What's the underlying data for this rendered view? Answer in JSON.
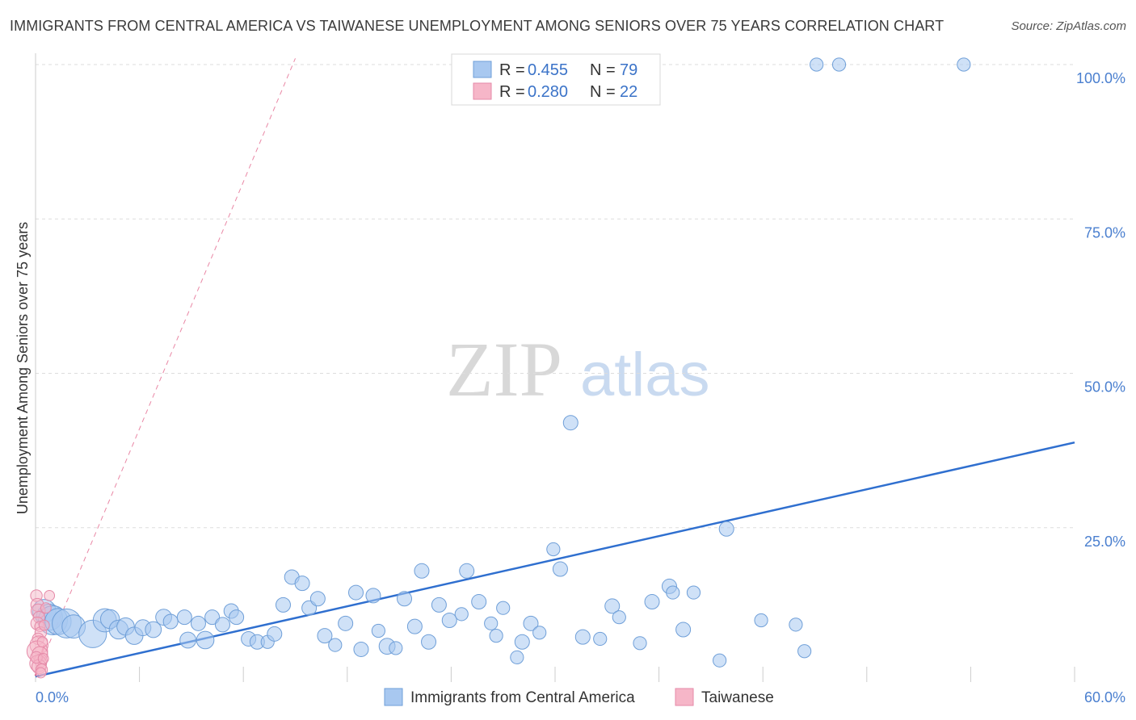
{
  "title": "IMMIGRANTS FROM CENTRAL AMERICA VS TAIWANESE UNEMPLOYMENT AMONG SENIORS OVER 75 YEARS CORRELATION CHART",
  "source": "Source: ZipAtlas.com",
  "watermark": {
    "zip": "ZIP",
    "atlas": "atlas"
  },
  "colors": {
    "blue_fill": "#a8c8f0",
    "blue_stroke": "#6f9fd8",
    "blue_line": "#2f6fcf",
    "pink_fill": "#f6b6c8",
    "pink_stroke": "#e58aa8",
    "pink_line": "#e0557f",
    "grid": "#dddddd",
    "tick_text": "#4a7fcf"
  },
  "chart_data": {
    "type": "scatter",
    "title": "IMMIGRANTS FROM CENTRAL AMERICA VS TAIWANESE UNEMPLOYMENT AMONG SENIORS OVER 75 YEARS CORRELATION CHART",
    "xlabel": "",
    "ylabel": "Unemployment Among Seniors over 75 years",
    "xlim": [
      0,
      60
    ],
    "ylim": [
      0,
      100
    ],
    "x_tick_labels": [
      "0.0%",
      "60.0%"
    ],
    "y_ticks": [
      25,
      50,
      75,
      100
    ],
    "y_tick_labels": [
      "25.0%",
      "50.0%",
      "75.0%",
      "100.0%"
    ],
    "grid": true,
    "legend_position": "top-center",
    "legend": [
      {
        "name": "Immigrants from Central America",
        "r_label": "R =",
        "r": "0.455",
        "n_label": "N =",
        "n": "79"
      },
      {
        "name": "Taiwanese",
        "r_label": "R =",
        "r": "0.280",
        "n_label": "N =",
        "n": "22"
      }
    ],
    "series": [
      {
        "name": "Immigrants from Central America",
        "color": "#a8c8f0",
        "trend": {
          "x": [
            0,
            60
          ],
          "y": [
            0.9,
            38.8
          ],
          "style": "solid"
        },
        "points": [
          {
            "x": 0.5,
            "y": 11.5,
            "s": 1.6
          },
          {
            "x": 0.8,
            "y": 10.5,
            "s": 1.8
          },
          {
            "x": 1.0,
            "y": 10.0,
            "s": 2.0
          },
          {
            "x": 1.3,
            "y": 9.8,
            "s": 1.8
          },
          {
            "x": 1.8,
            "y": 9.5,
            "s": 2.0
          },
          {
            "x": 2.2,
            "y": 9.0,
            "s": 1.6
          },
          {
            "x": 3.3,
            "y": 7.8,
            "s": 1.9
          },
          {
            "x": 4.0,
            "y": 10.0,
            "s": 1.6
          },
          {
            "x": 4.3,
            "y": 10.2,
            "s": 1.3
          },
          {
            "x": 4.8,
            "y": 8.5,
            "s": 1.3
          },
          {
            "x": 5.2,
            "y": 9.0,
            "s": 1.2
          },
          {
            "x": 5.7,
            "y": 7.5,
            "s": 1.2
          },
          {
            "x": 6.2,
            "y": 8.8,
            "s": 1.1
          },
          {
            "x": 6.8,
            "y": 8.5,
            "s": 1.1
          },
          {
            "x": 7.4,
            "y": 10.5,
            "s": 1.1
          },
          {
            "x": 7.8,
            "y": 9.8,
            "s": 1.0
          },
          {
            "x": 8.6,
            "y": 10.5,
            "s": 1.0
          },
          {
            "x": 8.8,
            "y": 6.8,
            "s": 1.1
          },
          {
            "x": 9.4,
            "y": 9.5,
            "s": 1.0
          },
          {
            "x": 9.8,
            "y": 6.8,
            "s": 1.2
          },
          {
            "x": 10.2,
            "y": 10.5,
            "s": 1.0
          },
          {
            "x": 10.8,
            "y": 9.3,
            "s": 1.0
          },
          {
            "x": 11.3,
            "y": 11.5,
            "s": 1.0
          },
          {
            "x": 11.6,
            "y": 10.5,
            "s": 1.0
          },
          {
            "x": 12.3,
            "y": 7.0,
            "s": 1.0
          },
          {
            "x": 12.8,
            "y": 6.5,
            "s": 1.0
          },
          {
            "x": 13.4,
            "y": 6.5,
            "s": 0.9
          },
          {
            "x": 13.8,
            "y": 7.8,
            "s": 1.0
          },
          {
            "x": 14.3,
            "y": 12.5,
            "s": 1.0
          },
          {
            "x": 14.8,
            "y": 17.0,
            "s": 1.0
          },
          {
            "x": 15.4,
            "y": 16.0,
            "s": 1.0
          },
          {
            "x": 15.8,
            "y": 12.0,
            "s": 1.0
          },
          {
            "x": 16.3,
            "y": 13.5,
            "s": 1.0
          },
          {
            "x": 16.7,
            "y": 7.5,
            "s": 1.0
          },
          {
            "x": 17.3,
            "y": 6.0,
            "s": 0.9
          },
          {
            "x": 17.9,
            "y": 9.5,
            "s": 1.0
          },
          {
            "x": 18.5,
            "y": 14.5,
            "s": 1.0
          },
          {
            "x": 18.8,
            "y": 5.3,
            "s": 1.0
          },
          {
            "x": 19.5,
            "y": 14.0,
            "s": 1.0
          },
          {
            "x": 19.8,
            "y": 8.3,
            "s": 0.9
          },
          {
            "x": 20.3,
            "y": 5.8,
            "s": 1.1
          },
          {
            "x": 20.8,
            "y": 5.5,
            "s": 0.9
          },
          {
            "x": 21.3,
            "y": 13.5,
            "s": 1.0
          },
          {
            "x": 21.9,
            "y": 9.0,
            "s": 1.0
          },
          {
            "x": 22.3,
            "y": 18.0,
            "s": 1.0
          },
          {
            "x": 22.7,
            "y": 6.5,
            "s": 1.0
          },
          {
            "x": 23.3,
            "y": 12.5,
            "s": 1.0
          },
          {
            "x": 23.9,
            "y": 10.0,
            "s": 1.0
          },
          {
            "x": 24.6,
            "y": 11.0,
            "s": 0.9
          },
          {
            "x": 24.9,
            "y": 18.0,
            "s": 1.0
          },
          {
            "x": 25.6,
            "y": 13.0,
            "s": 1.0
          },
          {
            "x": 26.3,
            "y": 9.5,
            "s": 0.9
          },
          {
            "x": 26.6,
            "y": 7.5,
            "s": 0.9
          },
          {
            "x": 27.0,
            "y": 12.0,
            "s": 0.9
          },
          {
            "x": 27.8,
            "y": 4.0,
            "s": 0.9
          },
          {
            "x": 28.1,
            "y": 6.5,
            "s": 1.0
          },
          {
            "x": 28.6,
            "y": 9.5,
            "s": 1.0
          },
          {
            "x": 29.1,
            "y": 8.0,
            "s": 0.9
          },
          {
            "x": 29.9,
            "y": 21.5,
            "s": 0.9
          },
          {
            "x": 30.3,
            "y": 18.3,
            "s": 1.0
          },
          {
            "x": 30.9,
            "y": 42.0,
            "s": 1.0
          },
          {
            "x": 31.6,
            "y": 7.3,
            "s": 1.0
          },
          {
            "x": 32.6,
            "y": 7.0,
            "s": 0.9
          },
          {
            "x": 33.3,
            "y": 12.3,
            "s": 1.0
          },
          {
            "x": 33.7,
            "y": 10.5,
            "s": 0.9
          },
          {
            "x": 34.9,
            "y": 6.3,
            "s": 0.9
          },
          {
            "x": 35.6,
            "y": 13.0,
            "s": 1.0
          },
          {
            "x": 36.6,
            "y": 15.5,
            "s": 1.0
          },
          {
            "x": 36.8,
            "y": 14.5,
            "s": 0.9
          },
          {
            "x": 37.4,
            "y": 8.5,
            "s": 1.0
          },
          {
            "x": 38.0,
            "y": 14.5,
            "s": 0.9
          },
          {
            "x": 39.5,
            "y": 3.5,
            "s": 0.9
          },
          {
            "x": 39.9,
            "y": 24.8,
            "s": 1.0
          },
          {
            "x": 41.9,
            "y": 10.0,
            "s": 0.9
          },
          {
            "x": 43.9,
            "y": 9.3,
            "s": 0.9
          },
          {
            "x": 44.4,
            "y": 5.0,
            "s": 0.9
          },
          {
            "x": 45.1,
            "y": 100,
            "s": 0.9
          },
          {
            "x": 46.4,
            "y": 100,
            "s": 0.9
          },
          {
            "x": 53.6,
            "y": 100,
            "s": 0.9
          }
        ]
      },
      {
        "name": "Taiwanese",
        "color": "#f6b6c8",
        "trend": {
          "x": [
            0,
            15
          ],
          "y": [
            1.0,
            101
          ],
          "style": "dashed"
        },
        "trend_solid": {
          "x": [
            0,
            0.5
          ],
          "y": [
            1.0,
            6.0
          ]
        },
        "points": [
          {
            "x": 0.05,
            "y": 14.0,
            "s": 0.9
          },
          {
            "x": 0.1,
            "y": 12.5,
            "s": 1.0
          },
          {
            "x": 0.15,
            "y": 11.5,
            "s": 1.1
          },
          {
            "x": 0.2,
            "y": 10.5,
            "s": 0.9
          },
          {
            "x": 0.1,
            "y": 9.5,
            "s": 1.0
          },
          {
            "x": 0.25,
            "y": 9.0,
            "s": 0.8
          },
          {
            "x": 0.3,
            "y": 8.0,
            "s": 0.9
          },
          {
            "x": 0.15,
            "y": 7.0,
            "s": 0.9
          },
          {
            "x": 0.2,
            "y": 6.0,
            "s": 1.4
          },
          {
            "x": 0.1,
            "y": 5.0,
            "s": 1.6
          },
          {
            "x": 0.25,
            "y": 4.5,
            "s": 1.2
          },
          {
            "x": 0.3,
            "y": 3.5,
            "s": 1.0
          },
          {
            "x": 0.15,
            "y": 3.0,
            "s": 1.3
          },
          {
            "x": 0.2,
            "y": 2.5,
            "s": 1.1
          },
          {
            "x": 0.35,
            "y": 2.0,
            "s": 0.9
          },
          {
            "x": 0.4,
            "y": 6.5,
            "s": 0.8
          },
          {
            "x": 0.05,
            "y": 4.0,
            "s": 0.9
          },
          {
            "x": 0.45,
            "y": 3.8,
            "s": 0.8
          },
          {
            "x": 0.5,
            "y": 9.2,
            "s": 0.8
          },
          {
            "x": 0.6,
            "y": 12.0,
            "s": 0.8
          },
          {
            "x": 0.8,
            "y": 14.0,
            "s": 0.8
          },
          {
            "x": 0.3,
            "y": 1.5,
            "s": 0.8
          }
        ]
      }
    ]
  }
}
